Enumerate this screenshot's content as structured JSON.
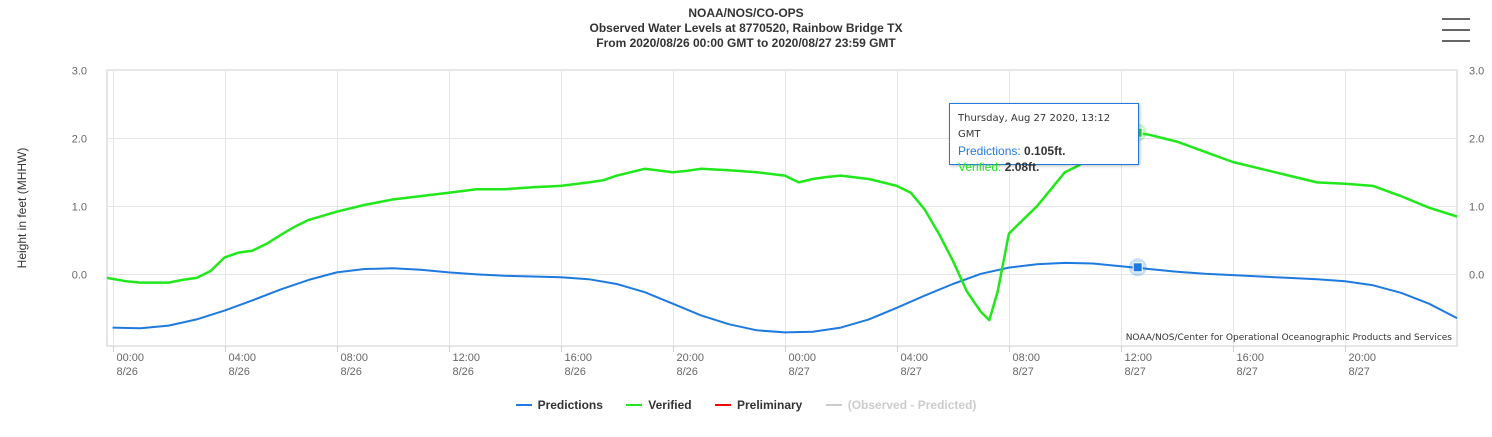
{
  "header": {
    "title": "NOAA/NOS/CO-OPS",
    "subtitle_1": "Observed Water Levels at 8770520, Rainbow Bridge TX",
    "subtitle_2": "From 2020/08/26 00:00 GMT to 2020/08/27 23:59 GMT"
  },
  "credit": "NOAA/NOS/Center for Operational Oceanographic Products and Services",
  "tooltip": {
    "header": "Thursday, Aug 27 2020, 13:12 GMT",
    "predictions_label": "Predictions:",
    "predictions_value": "0.105ft.",
    "verified_label": "Verified:",
    "verified_value": "2.08ft."
  },
  "chart_data": {
    "type": "line",
    "ylabel": "Height in feet (MHHW)",
    "ylim": [
      -1.05,
      3.0
    ],
    "yticks": [
      0.0,
      1.0,
      2.0,
      3.0
    ],
    "ytick_labels": [
      "0.0",
      "1.0",
      "2.0",
      "3.0"
    ],
    "xlim_hours": [
      -0.2,
      48.0
    ],
    "xticks": [
      {
        "hour": 0,
        "time": "00:00",
        "date": "8/26"
      },
      {
        "hour": 4,
        "time": "04:00",
        "date": "8/26"
      },
      {
        "hour": 8,
        "time": "08:00",
        "date": "8/26"
      },
      {
        "hour": 12,
        "time": "12:00",
        "date": "8/26"
      },
      {
        "hour": 16,
        "time": "16:00",
        "date": "8/26"
      },
      {
        "hour": 20,
        "time": "20:00",
        "date": "8/26"
      },
      {
        "hour": 24,
        "time": "00:00",
        "date": "8/27"
      },
      {
        "hour": 28,
        "time": "04:00",
        "date": "8/27"
      },
      {
        "hour": 32,
        "time": "08:00",
        "date": "8/27"
      },
      {
        "hour": 36,
        "time": "12:00",
        "date": "8/27"
      },
      {
        "hour": 40,
        "time": "16:00",
        "date": "8/27"
      },
      {
        "hour": 44,
        "time": "20:00",
        "date": "8/27"
      }
    ],
    "grid": true,
    "legend_position": "bottom",
    "series": [
      {
        "name": "Predictions",
        "color": "#1f7ae0",
        "hours": [
          0,
          1,
          2,
          3,
          4,
          5,
          6,
          7,
          8,
          9,
          10,
          11,
          12,
          13,
          14,
          15,
          16,
          17,
          18,
          19,
          20,
          21,
          22,
          23,
          24,
          25,
          26,
          27,
          28,
          29,
          30,
          31,
          32,
          33,
          34,
          35,
          36,
          37,
          38,
          39,
          40,
          41,
          42,
          43,
          44,
          45,
          46,
          47,
          48
        ],
        "values": [
          -0.78,
          -0.79,
          -0.75,
          -0.66,
          -0.53,
          -0.38,
          -0.22,
          -0.08,
          0.03,
          0.08,
          0.09,
          0.07,
          0.03,
          0.0,
          -0.02,
          -0.03,
          -0.04,
          -0.07,
          -0.14,
          -0.26,
          -0.43,
          -0.6,
          -0.73,
          -0.82,
          -0.85,
          -0.84,
          -0.78,
          -0.66,
          -0.49,
          -0.31,
          -0.14,
          0.01,
          0.1,
          0.15,
          0.17,
          0.16,
          0.12,
          0.08,
          0.04,
          0.01,
          -0.01,
          -0.03,
          -0.05,
          -0.07,
          -0.1,
          -0.16,
          -0.27,
          -0.43,
          -0.64
        ]
      },
      {
        "name": "Verified",
        "color": "#21e81b",
        "hours": [
          -0.2,
          0.5,
          1.0,
          1.5,
          2.0,
          2.5,
          3.0,
          3.5,
          4.0,
          4.5,
          5.0,
          5.5,
          6.0,
          6.5,
          7.0,
          8.0,
          9.0,
          10.0,
          11.0,
          12.0,
          13.0,
          14.0,
          15.0,
          16.0,
          17.0,
          17.5,
          18.0,
          18.5,
          19.0,
          20.0,
          20.5,
          21.0,
          22.0,
          23.0,
          24.0,
          24.5,
          25.0,
          25.5,
          26.0,
          27.0,
          27.5,
          28.0,
          28.5,
          29.0,
          29.5,
          30.0,
          30.5,
          31.0,
          31.3,
          31.6,
          32.0,
          32.5,
          33.0,
          33.5,
          34.0,
          34.5,
          35.0,
          35.5,
          36.0,
          36.5,
          37.0,
          38.0,
          39.0,
          40.0,
          41.0,
          42.0,
          43.0,
          44.0,
          45.0,
          46.0,
          47.0,
          48.0
        ],
        "values": [
          -0.05,
          -0.1,
          -0.12,
          -0.12,
          -0.12,
          -0.08,
          -0.05,
          0.05,
          0.25,
          0.32,
          0.35,
          0.45,
          0.58,
          0.7,
          0.8,
          0.92,
          1.02,
          1.1,
          1.15,
          1.2,
          1.25,
          1.25,
          1.28,
          1.3,
          1.35,
          1.38,
          1.45,
          1.5,
          1.55,
          1.5,
          1.52,
          1.55,
          1.53,
          1.5,
          1.45,
          1.35,
          1.4,
          1.43,
          1.45,
          1.4,
          1.35,
          1.3,
          1.2,
          0.95,
          0.6,
          0.2,
          -0.25,
          -0.55,
          -0.67,
          -0.25,
          0.6,
          0.8,
          1.0,
          1.25,
          1.5,
          1.6,
          1.75,
          1.9,
          2.0,
          2.08,
          2.05,
          1.95,
          1.8,
          1.65,
          1.55,
          1.45,
          1.35,
          1.33,
          1.3,
          1.15,
          0.98,
          0.85
        ]
      },
      {
        "name": "Preliminary",
        "color": "#ff0000",
        "hours": [],
        "values": []
      },
      {
        "name": "(Observed - Predicted)",
        "color": "#cccccc",
        "hidden": true,
        "hours": [],
        "values": []
      }
    ],
    "highlight": {
      "hour": 36.6,
      "predictions": 0.105,
      "verified": 2.08
    }
  }
}
